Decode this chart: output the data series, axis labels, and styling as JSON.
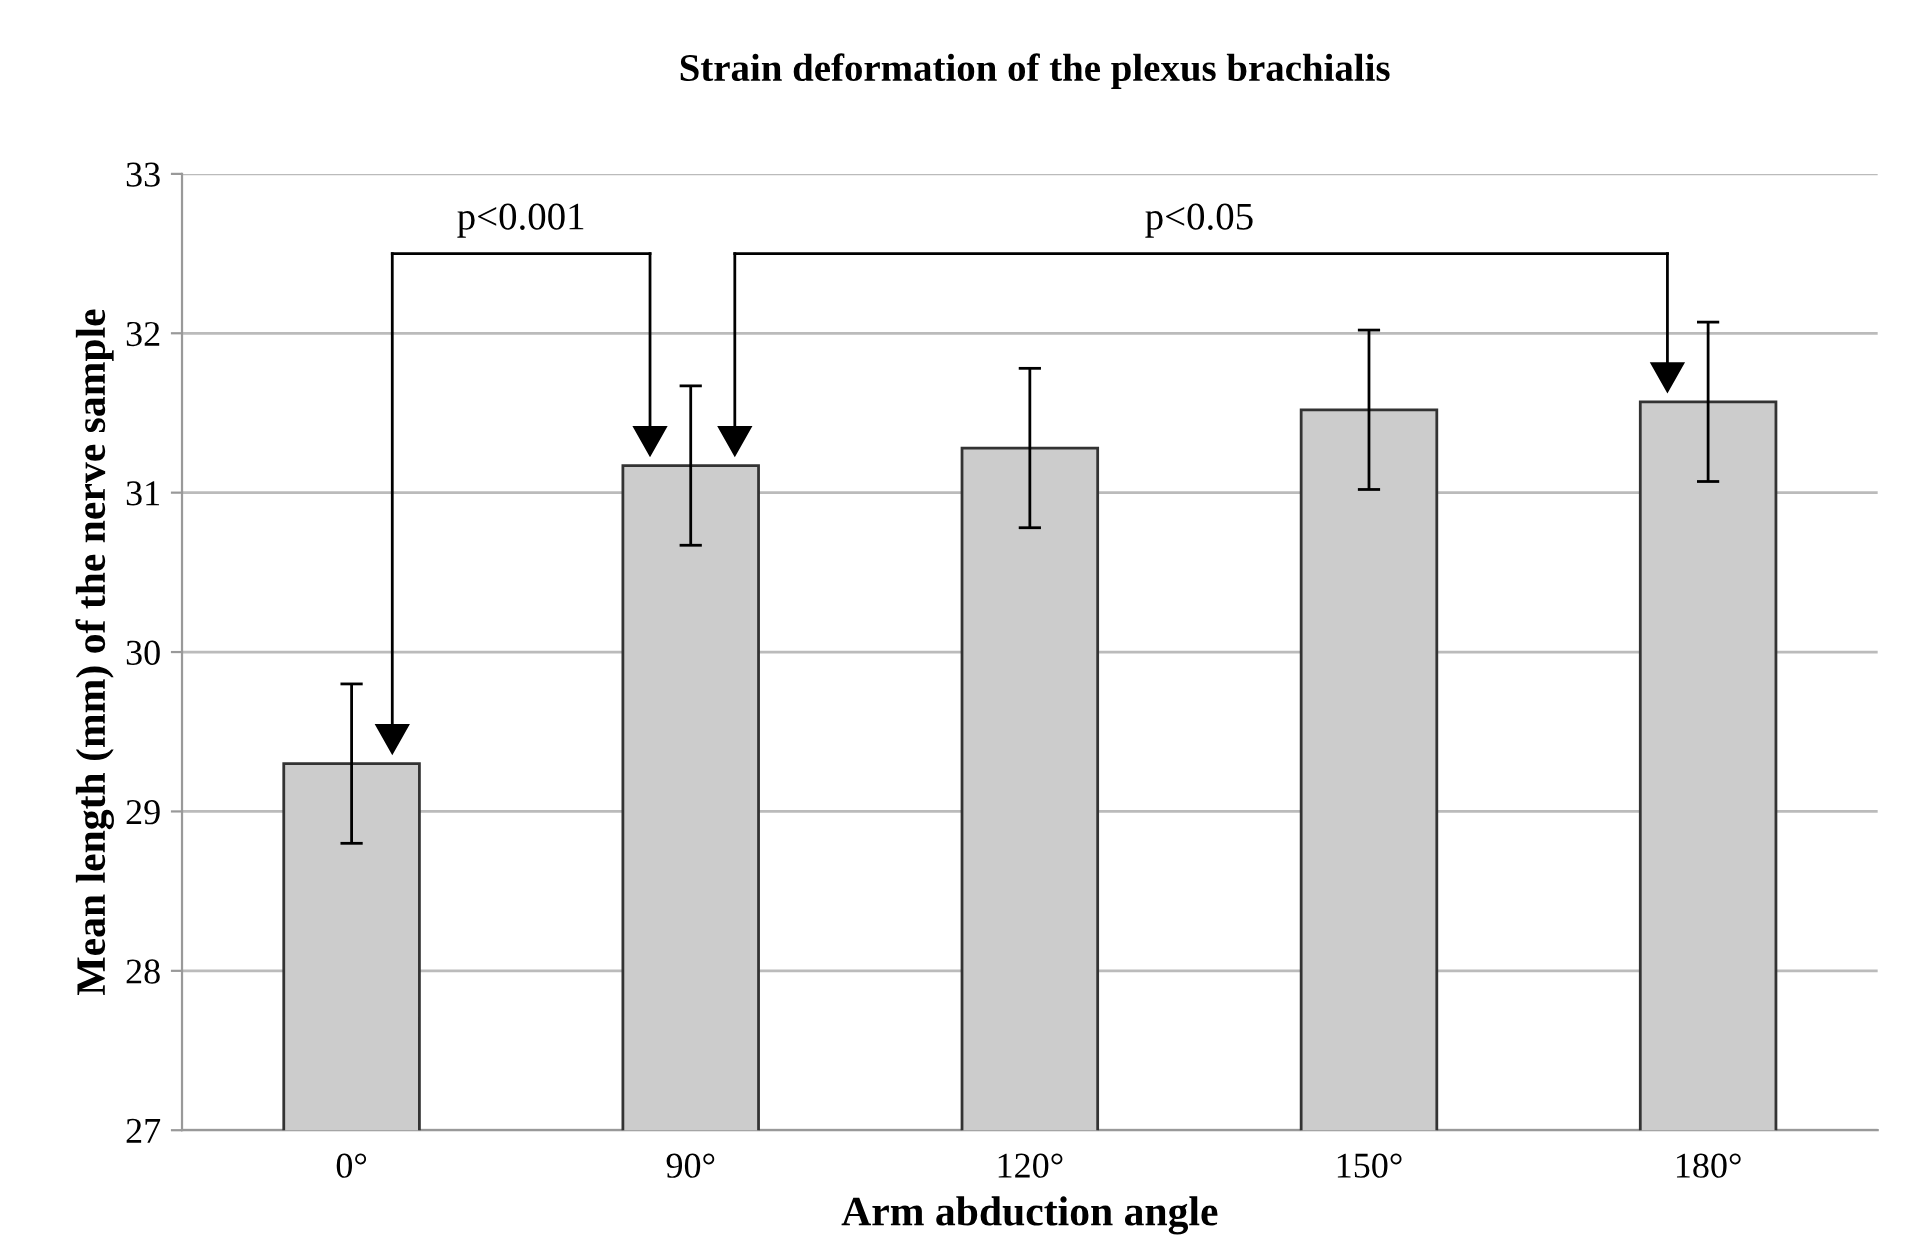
{
  "chart_data": {
    "type": "bar",
    "title": "Strain deformation of the plexus brachialis",
    "xlabel": "Arm abduction angle",
    "ylabel": "Mean length (mm) of the nerve sample",
    "categories": [
      "0°",
      "90°",
      "120°",
      "150°",
      "180°"
    ],
    "values": [
      29.3,
      31.17,
      31.28,
      31.52,
      31.57
    ],
    "errors": [
      0.5,
      0.5,
      0.5,
      0.5,
      0.5
    ],
    "color": "#cccccc",
    "ylim": [
      27,
      33
    ],
    "yticks": [
      27,
      28,
      29,
      30,
      31,
      32,
      33
    ],
    "grid": "y",
    "annotations": [
      "p<0.001",
      "p<0.05"
    ]
  }
}
